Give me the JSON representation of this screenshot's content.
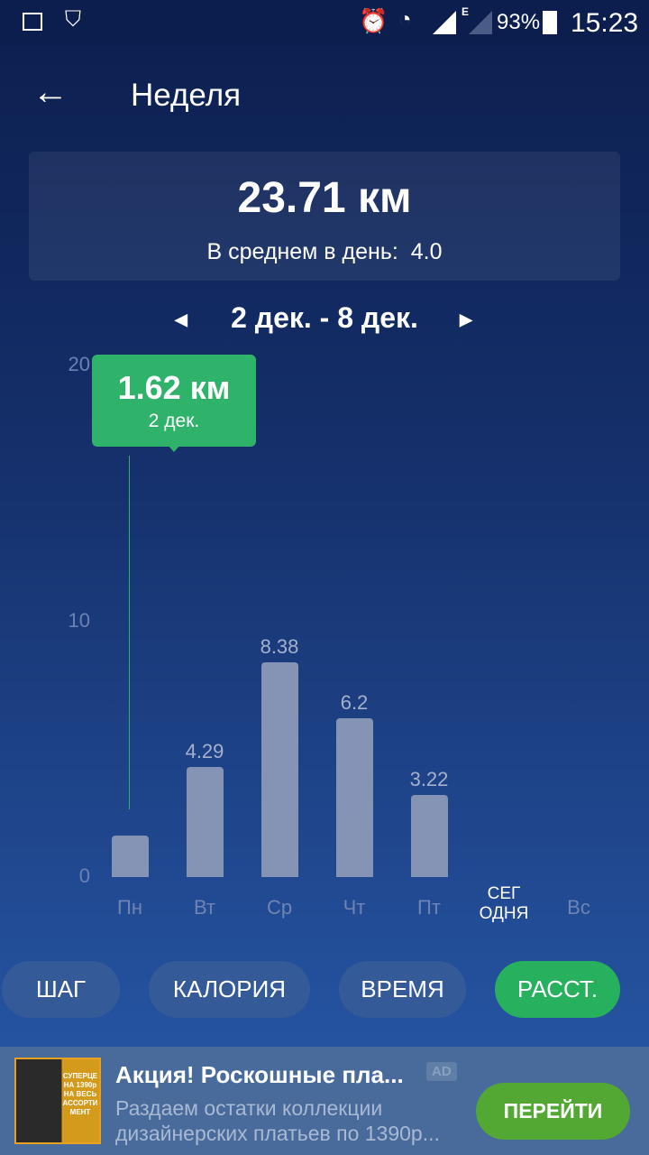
{
  "status_bar": {
    "battery": "93%",
    "time": "15:23",
    "network": "E",
    "icons": [
      "gallery-icon",
      "shield-check-icon",
      "alarm-icon",
      "wifi-icon",
      "signal-icon",
      "signal-weak-icon",
      "battery-icon"
    ]
  },
  "header": {
    "title": "Неделя",
    "back_icon": "arrow-left-icon"
  },
  "summary": {
    "total": "23.71 км",
    "avg_label": "В среднем в день:",
    "avg_value": "4.0"
  },
  "range": {
    "label": "2 дек. - 8 дек.",
    "prev_icon": "triangle-left-icon",
    "next_icon": "triangle-right-icon"
  },
  "tooltip": {
    "value": "1.62 км",
    "date": "2 дек."
  },
  "colors": {
    "accent": "#2fb36a",
    "bar": "#8593b5",
    "ad_button": "#52a832"
  },
  "chart_data": {
    "type": "bar",
    "categories": [
      "Пн",
      "Вт",
      "Ср",
      "Чт",
      "Пт",
      "СЕГ ОДНЯ",
      "Вс"
    ],
    "values": [
      1.62,
      4.29,
      8.38,
      6.2,
      3.22,
      null,
      null
    ],
    "data_labels": [
      "",
      "4.29",
      "8.38",
      "6.2",
      "3.22",
      "",
      ""
    ],
    "yticks": [
      "0",
      "10",
      "20"
    ],
    "ylim": [
      0,
      20
    ],
    "grid": false,
    "selected_index": 0
  },
  "tabs": [
    {
      "label": "ШАГ",
      "active": false
    },
    {
      "label": "КАЛОРИЯ",
      "active": false
    },
    {
      "label": "ВРЕМЯ",
      "active": false
    },
    {
      "label": "РАССТ.",
      "active": true
    }
  ],
  "ad": {
    "title": "Акция! Роскошные пла...",
    "badge": "AD",
    "body": "Раздаем остатки коллекции дизайнерских платьев по 1390р...",
    "button": "ПЕРЕЙТИ",
    "image_text": "СУПЕРЦЕНА 1390р НА ВЕСЬ АССОРТИМЕНТ"
  }
}
